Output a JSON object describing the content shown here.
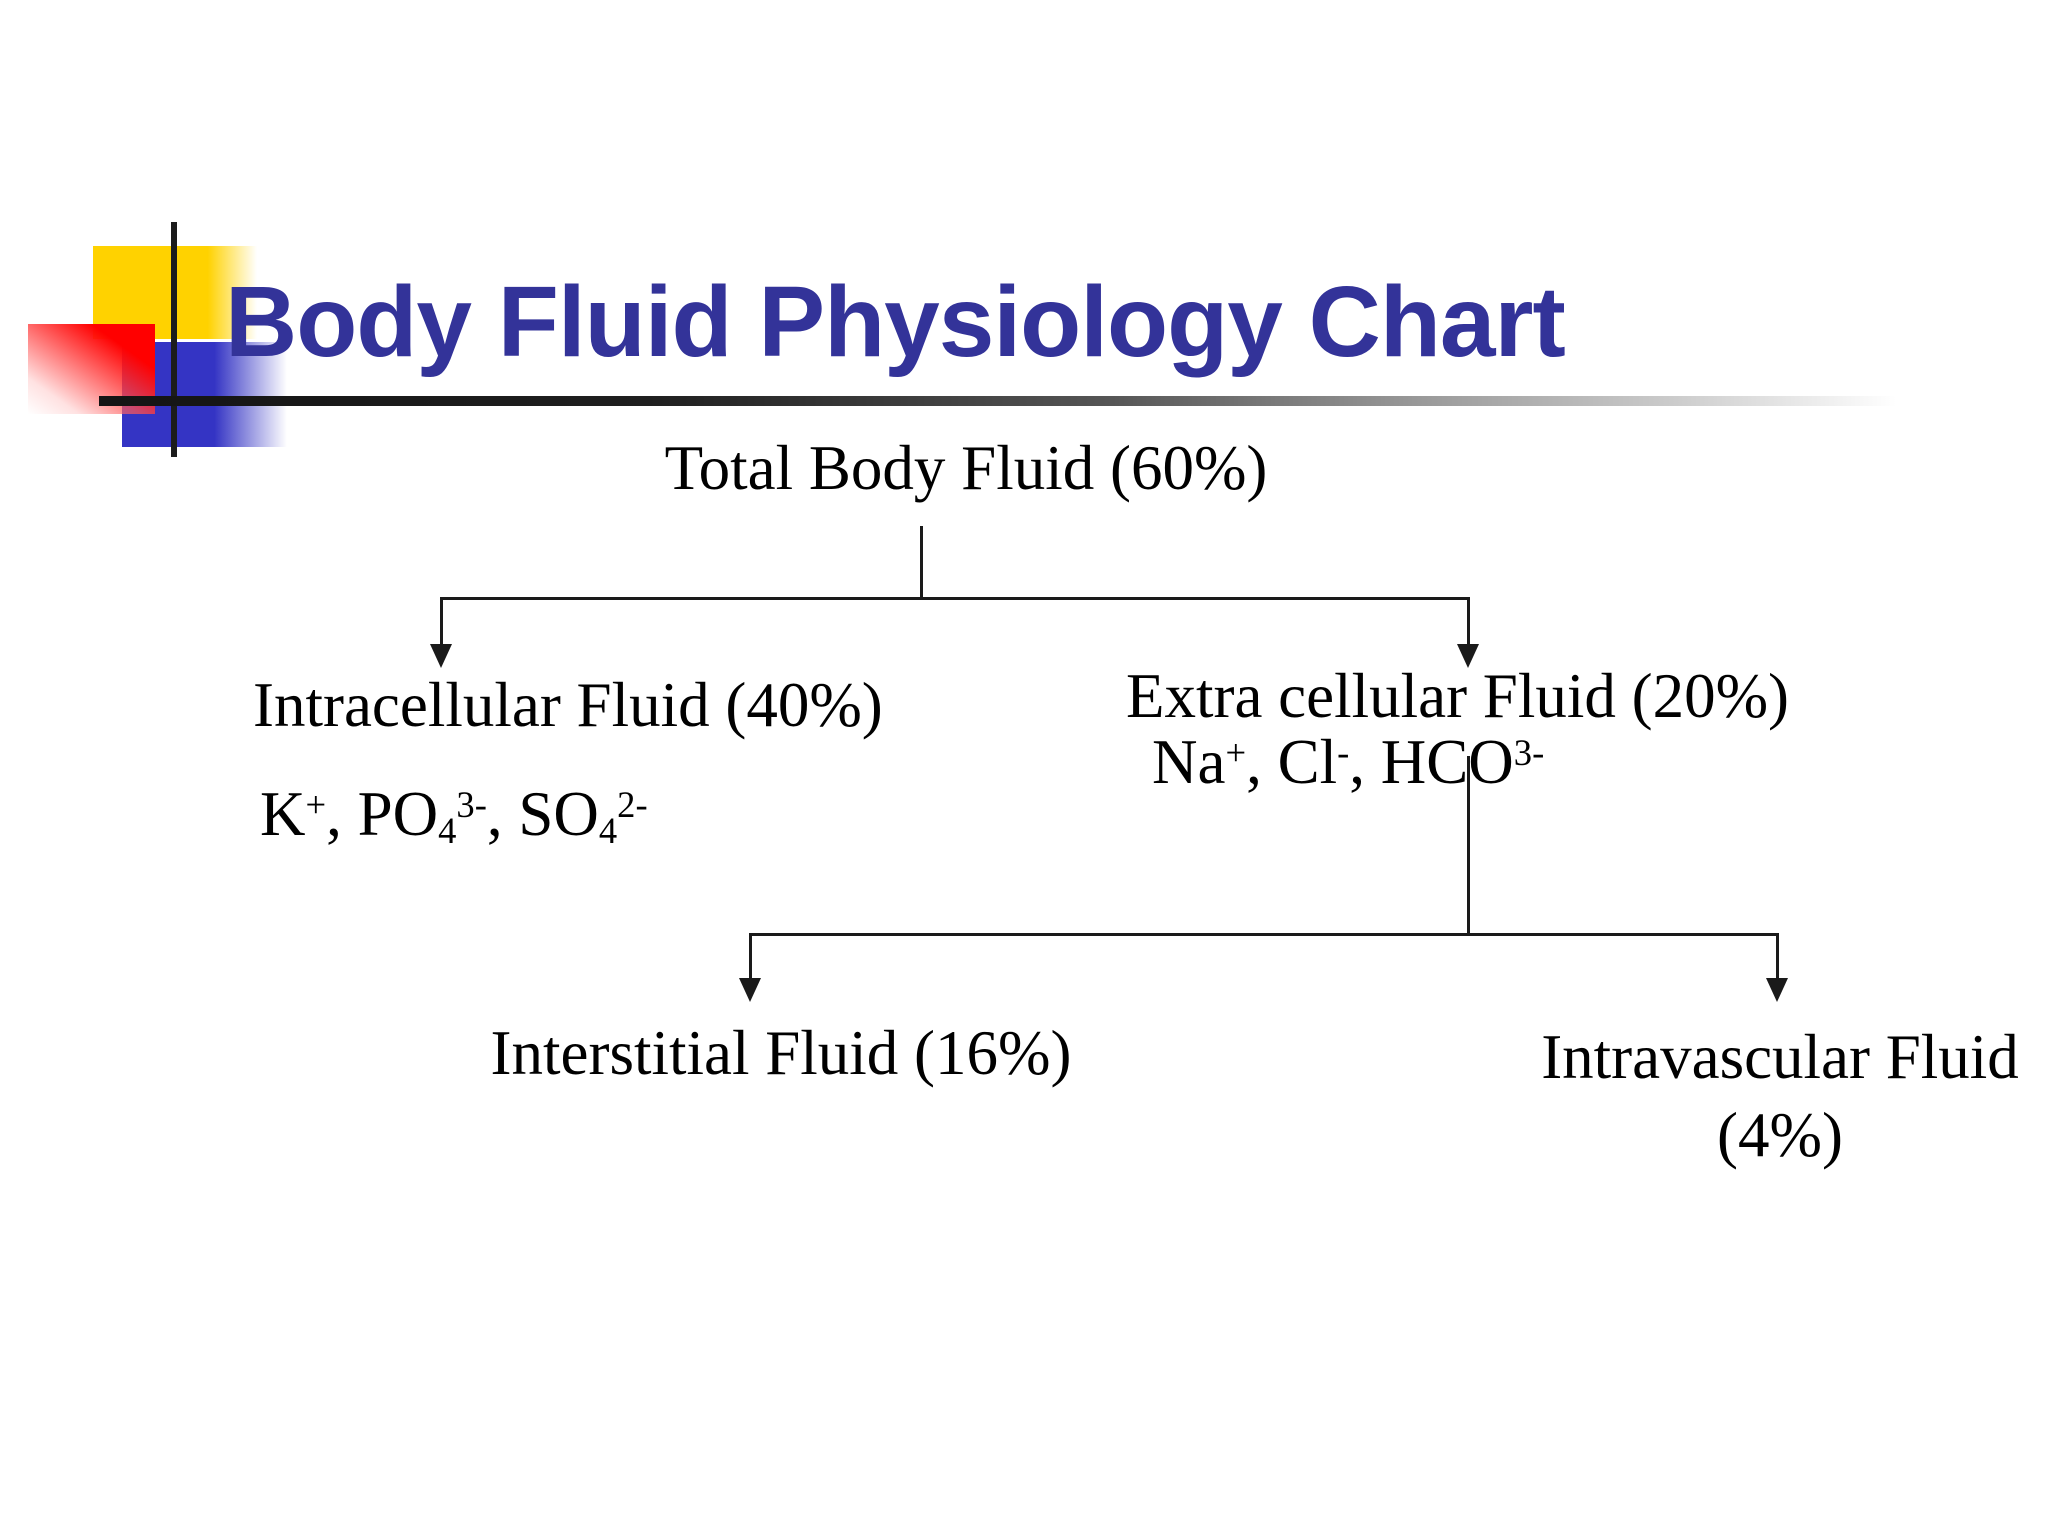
{
  "slide": {
    "title": "Body Fluid Physiology Chart",
    "colors": {
      "background": "#FFFFFF",
      "title": "#333399",
      "decor_yellow": "#FFD200",
      "decor_red": "#FF0000",
      "decor_blue": "#3434C4",
      "line": "#1A1A1A"
    }
  },
  "diagram": {
    "nodes": {
      "total": {
        "label": "Total Body Fluid (60%)"
      },
      "intracellular": {
        "label": "Intracellular Fluid (40%)",
        "ions": [
          {
            "t": "K"
          },
          {
            "t": "+",
            "s": "sup"
          },
          {
            "t": ", PO"
          },
          {
            "t": "4",
            "s": "sub"
          },
          {
            "t": "3-",
            "s": "sup"
          },
          {
            "t": ", SO"
          },
          {
            "t": "4",
            "s": "sub"
          },
          {
            "t": "2-",
            "s": "sup"
          }
        ]
      },
      "extracellular": {
        "label": "Extra cellular Fluid (20%)",
        "ions": [
          {
            "t": "Na"
          },
          {
            "t": "+",
            "s": "sup"
          },
          {
            "t": ", Cl"
          },
          {
            "t": "-",
            "s": "sup"
          },
          {
            "t": ", HCO"
          },
          {
            "t": "3-",
            "s": "sup"
          }
        ]
      },
      "interstitial": {
        "label": "Interstitial Fluid (16%)"
      },
      "intravascular": {
        "label": "Intravascular Fluid",
        "percent": "(4%)"
      }
    },
    "edges": [
      {
        "from": "total",
        "to": "intracellular"
      },
      {
        "from": "total",
        "to": "extracellular"
      },
      {
        "from": "extracellular",
        "to": "interstitial"
      },
      {
        "from": "extracellular",
        "to": "intravascular"
      }
    ]
  }
}
